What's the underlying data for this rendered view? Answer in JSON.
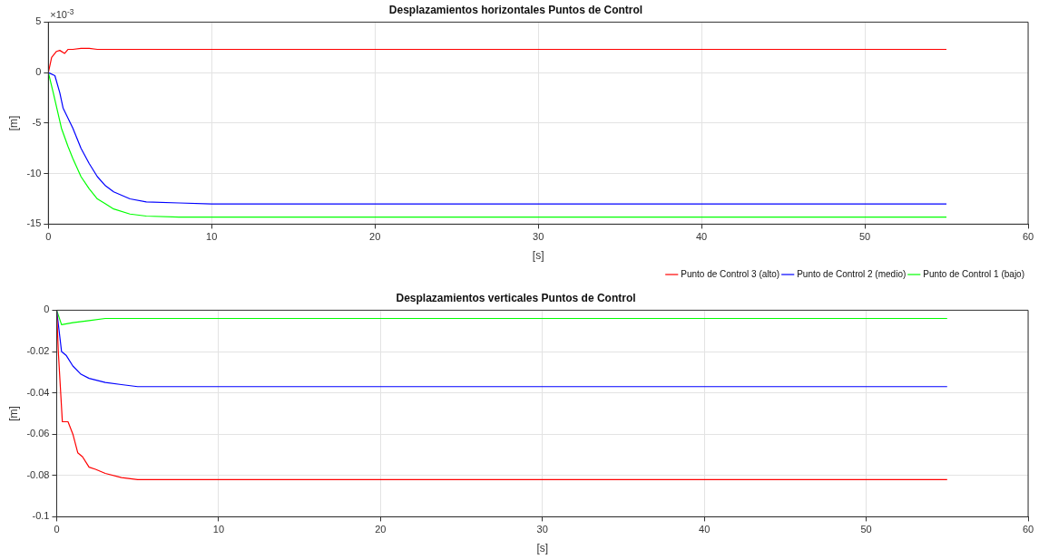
{
  "chart_data": [
    {
      "type": "line",
      "title": "Desplazamientos horizontales Puntos de Control",
      "xlabel": "[s]",
      "ylabel": "[m]",
      "annotations": [
        "×10$^{-3}$"
      ],
      "xlim": [
        0,
        60
      ],
      "xticks": [
        0,
        10,
        20,
        30,
        40,
        50,
        60
      ],
      "ylim": [
        -15,
        5
      ],
      "yticks": [
        -15,
        -10,
        -5,
        0,
        5
      ],
      "grid": true,
      "legend": "bottom right",
      "line_style": "solid",
      "marker": "none",
      "series": [
        {
          "name": "Punto de Control 3 (alto)",
          "color": "#ff0000",
          "x": [
            0,
            0.2,
            0.5,
            0.7,
            1.0,
            1.2,
            1.5,
            2,
            2.5,
            3,
            5,
            10,
            55
          ],
          "values": [
            0,
            1.5,
            2.1,
            2.2,
            1.9,
            2.3,
            2.3,
            2.4,
            2.4,
            2.3,
            2.3,
            2.3,
            2.3
          ]
        },
        {
          "name": "Punto de Control 2 (medio)",
          "color": "#0000ff",
          "x": [
            0,
            0.4,
            0.7,
            0.9,
            1.5,
            2,
            2.5,
            3,
            3.5,
            4,
            5,
            6,
            8,
            10,
            55
          ],
          "values": [
            0,
            -0.3,
            -2,
            -3.5,
            -5.5,
            -7.5,
            -9,
            -10.3,
            -11.2,
            -11.8,
            -12.5,
            -12.8,
            -12.9,
            -13,
            -13
          ]
        },
        {
          "name": "Punto de Control 1 (bajo)",
          "color": "#00ff00",
          "x": [
            0,
            0.3,
            0.8,
            1.2,
            1.5,
            2,
            2.5,
            3,
            3.5,
            4,
            5,
            6,
            8,
            10,
            55
          ],
          "values": [
            0,
            -2,
            -5.5,
            -7.3,
            -8.5,
            -10.3,
            -11.5,
            -12.5,
            -13,
            -13.5,
            -14,
            -14.2,
            -14.3,
            -14.3,
            -14.3
          ]
        }
      ]
    },
    {
      "type": "line",
      "title": "Desplazamientos verticales Puntos de Control",
      "xlabel": "[s]",
      "ylabel": "[m]",
      "xlim": [
        0,
        60
      ],
      "xticks": [
        0,
        10,
        20,
        30,
        40,
        50,
        60
      ],
      "ylim": [
        -0.1,
        0
      ],
      "yticks": [
        -0.1,
        -0.08,
        -0.06,
        -0.04,
        -0.02,
        0
      ],
      "grid": true,
      "line_style": "solid",
      "marker": "none",
      "series": [
        {
          "color": "#ff0000",
          "x": [
            0,
            0.1,
            0.35,
            0.7,
            1.0,
            1.3,
            1.6,
            2.0,
            2.4,
            3,
            4,
            5,
            8,
            55
          ],
          "values": [
            0,
            -0.02,
            -0.054,
            -0.054,
            -0.06,
            -0.069,
            -0.071,
            -0.076,
            -0.077,
            -0.079,
            -0.081,
            -0.082,
            -0.082,
            -0.082
          ]
        },
        {
          "color": "#0000ff",
          "x": [
            0,
            0.3,
            0.6,
            1,
            1.5,
            2,
            3,
            4,
            5,
            8,
            55
          ],
          "values": [
            0,
            -0.02,
            -0.022,
            -0.027,
            -0.031,
            -0.033,
            -0.035,
            -0.036,
            -0.037,
            -0.037,
            -0.037
          ]
        },
        {
          "color": "#00ff00",
          "x": [
            0,
            0.3,
            1,
            2,
            3,
            5,
            10,
            55
          ],
          "values": [
            0,
            -0.007,
            -0.006,
            -0.005,
            -0.004,
            -0.004,
            -0.004,
            -0.004
          ]
        }
      ]
    }
  ]
}
